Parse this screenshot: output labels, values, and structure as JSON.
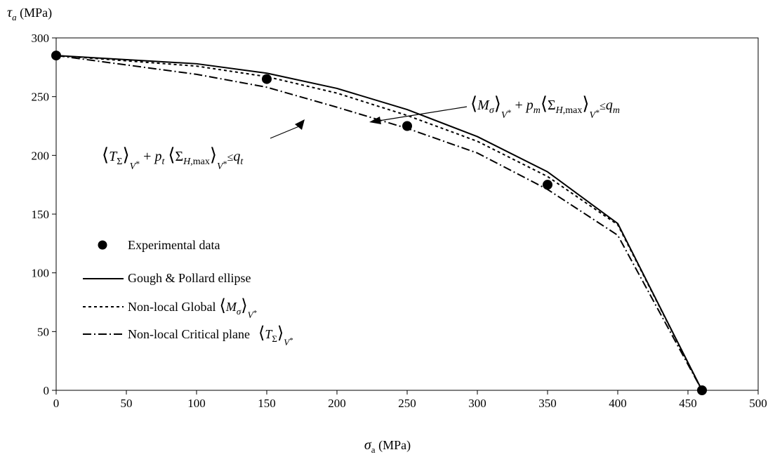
{
  "chart_data": {
    "type": "line",
    "xlabel": "σa (MPa)",
    "ylabel": "τa (MPa)",
    "xlim": [
      0,
      500
    ],
    "ylim": [
      0,
      300
    ],
    "xticks": [
      0,
      50,
      100,
      150,
      200,
      250,
      300,
      350,
      400,
      450,
      500
    ],
    "yticks": [
      0,
      50,
      100,
      150,
      200,
      250,
      300
    ],
    "grid": false,
    "legend_position": "left",
    "series": [
      {
        "name": "Experimental data",
        "style": "markers",
        "color": "#000000",
        "x": [
          0,
          150,
          250,
          350,
          460
        ],
        "y": [
          285,
          265,
          225,
          175,
          0
        ]
      },
      {
        "name": "Gough & Pollard ellipse",
        "style": "solid",
        "color": "#000000",
        "x": [
          0,
          100,
          150,
          200,
          250,
          300,
          350,
          400,
          460
        ],
        "y": [
          285,
          278,
          270,
          257,
          239,
          216,
          186,
          142,
          0
        ]
      },
      {
        "name": "Non-local Global",
        "style": "dotted",
        "color": "#000000",
        "x": [
          0,
          100,
          150,
          200,
          250,
          300,
          350,
          400,
          460
        ],
        "y": [
          285,
          276,
          267,
          253,
          234,
          212,
          182,
          141,
          0
        ]
      },
      {
        "name": "Non-local Critical plane",
        "style": "dashdot",
        "color": "#000000",
        "x": [
          0,
          100,
          150,
          200,
          250,
          300,
          350,
          400,
          460
        ],
        "y": [
          285,
          269,
          258,
          241,
          223,
          202,
          171,
          132,
          0
        ]
      }
    ],
    "annotations": [
      {
        "id": "annotation-global",
        "text": "⟨Mσ⟩V* + pm ⟨ΣH,max⟩V* ≤ qm",
        "arrow_to": [
          225,
          245
        ]
      },
      {
        "id": "annotation-critical",
        "text": "⟨TΣ⟩V* + pt ⟨ΣH,max⟩V* ≤ qt",
        "arrow_to": [
          178,
          250
        ]
      }
    ]
  }
}
